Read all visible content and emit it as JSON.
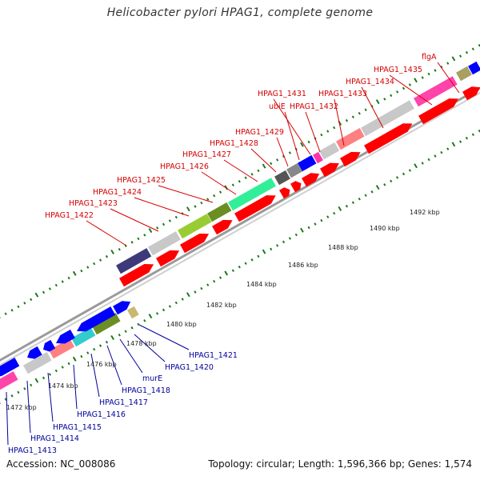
{
  "title": "Helicobacter pylori HPAG1, complete genome",
  "footer": {
    "accession": "Accession: NC_008086",
    "topology": "Topology: circular; Length: 1,596,366 bp; Genes: 1,574"
  },
  "colors": {
    "forward_label": "#d40000",
    "reverse_label": "#00009a",
    "feature_arrow": "#ff0000",
    "reverse_arrow": "#0000ff",
    "tick": "#1a7a1a"
  },
  "kbp_labels": [
    "1472 kbp",
    "1474 kbp",
    "1476 kbp",
    "1478 kbp",
    "1480 kbp",
    "1482 kbp",
    "1484 kbp",
    "1486 kbp",
    "1488 kbp",
    "1490 kbp",
    "1492 kbp"
  ],
  "upper_labels": [
    "HPAG1_1422",
    "HPAG1_1423",
    "HPAG1_1424",
    "HPAG1_1425",
    "HPAG1_1426",
    "HPAG1_1427",
    "HPAG1_1428",
    "HPAG1_1429",
    "ubiE",
    "HPAG1_1431",
    "HPAG1_1432",
    "HPAG1_1433",
    "HPAG1_1434",
    "HPAG1_1435",
    "flgA"
  ],
  "lower_labels": [
    "HPAG1_1413",
    "HPAG1_1414",
    "HPAG1_1415",
    "HPAG1_1416",
    "HPAG1_1417",
    "HPAG1_1418",
    "murE",
    "HPAG1_1420",
    "HPAG1_1421"
  ]
}
